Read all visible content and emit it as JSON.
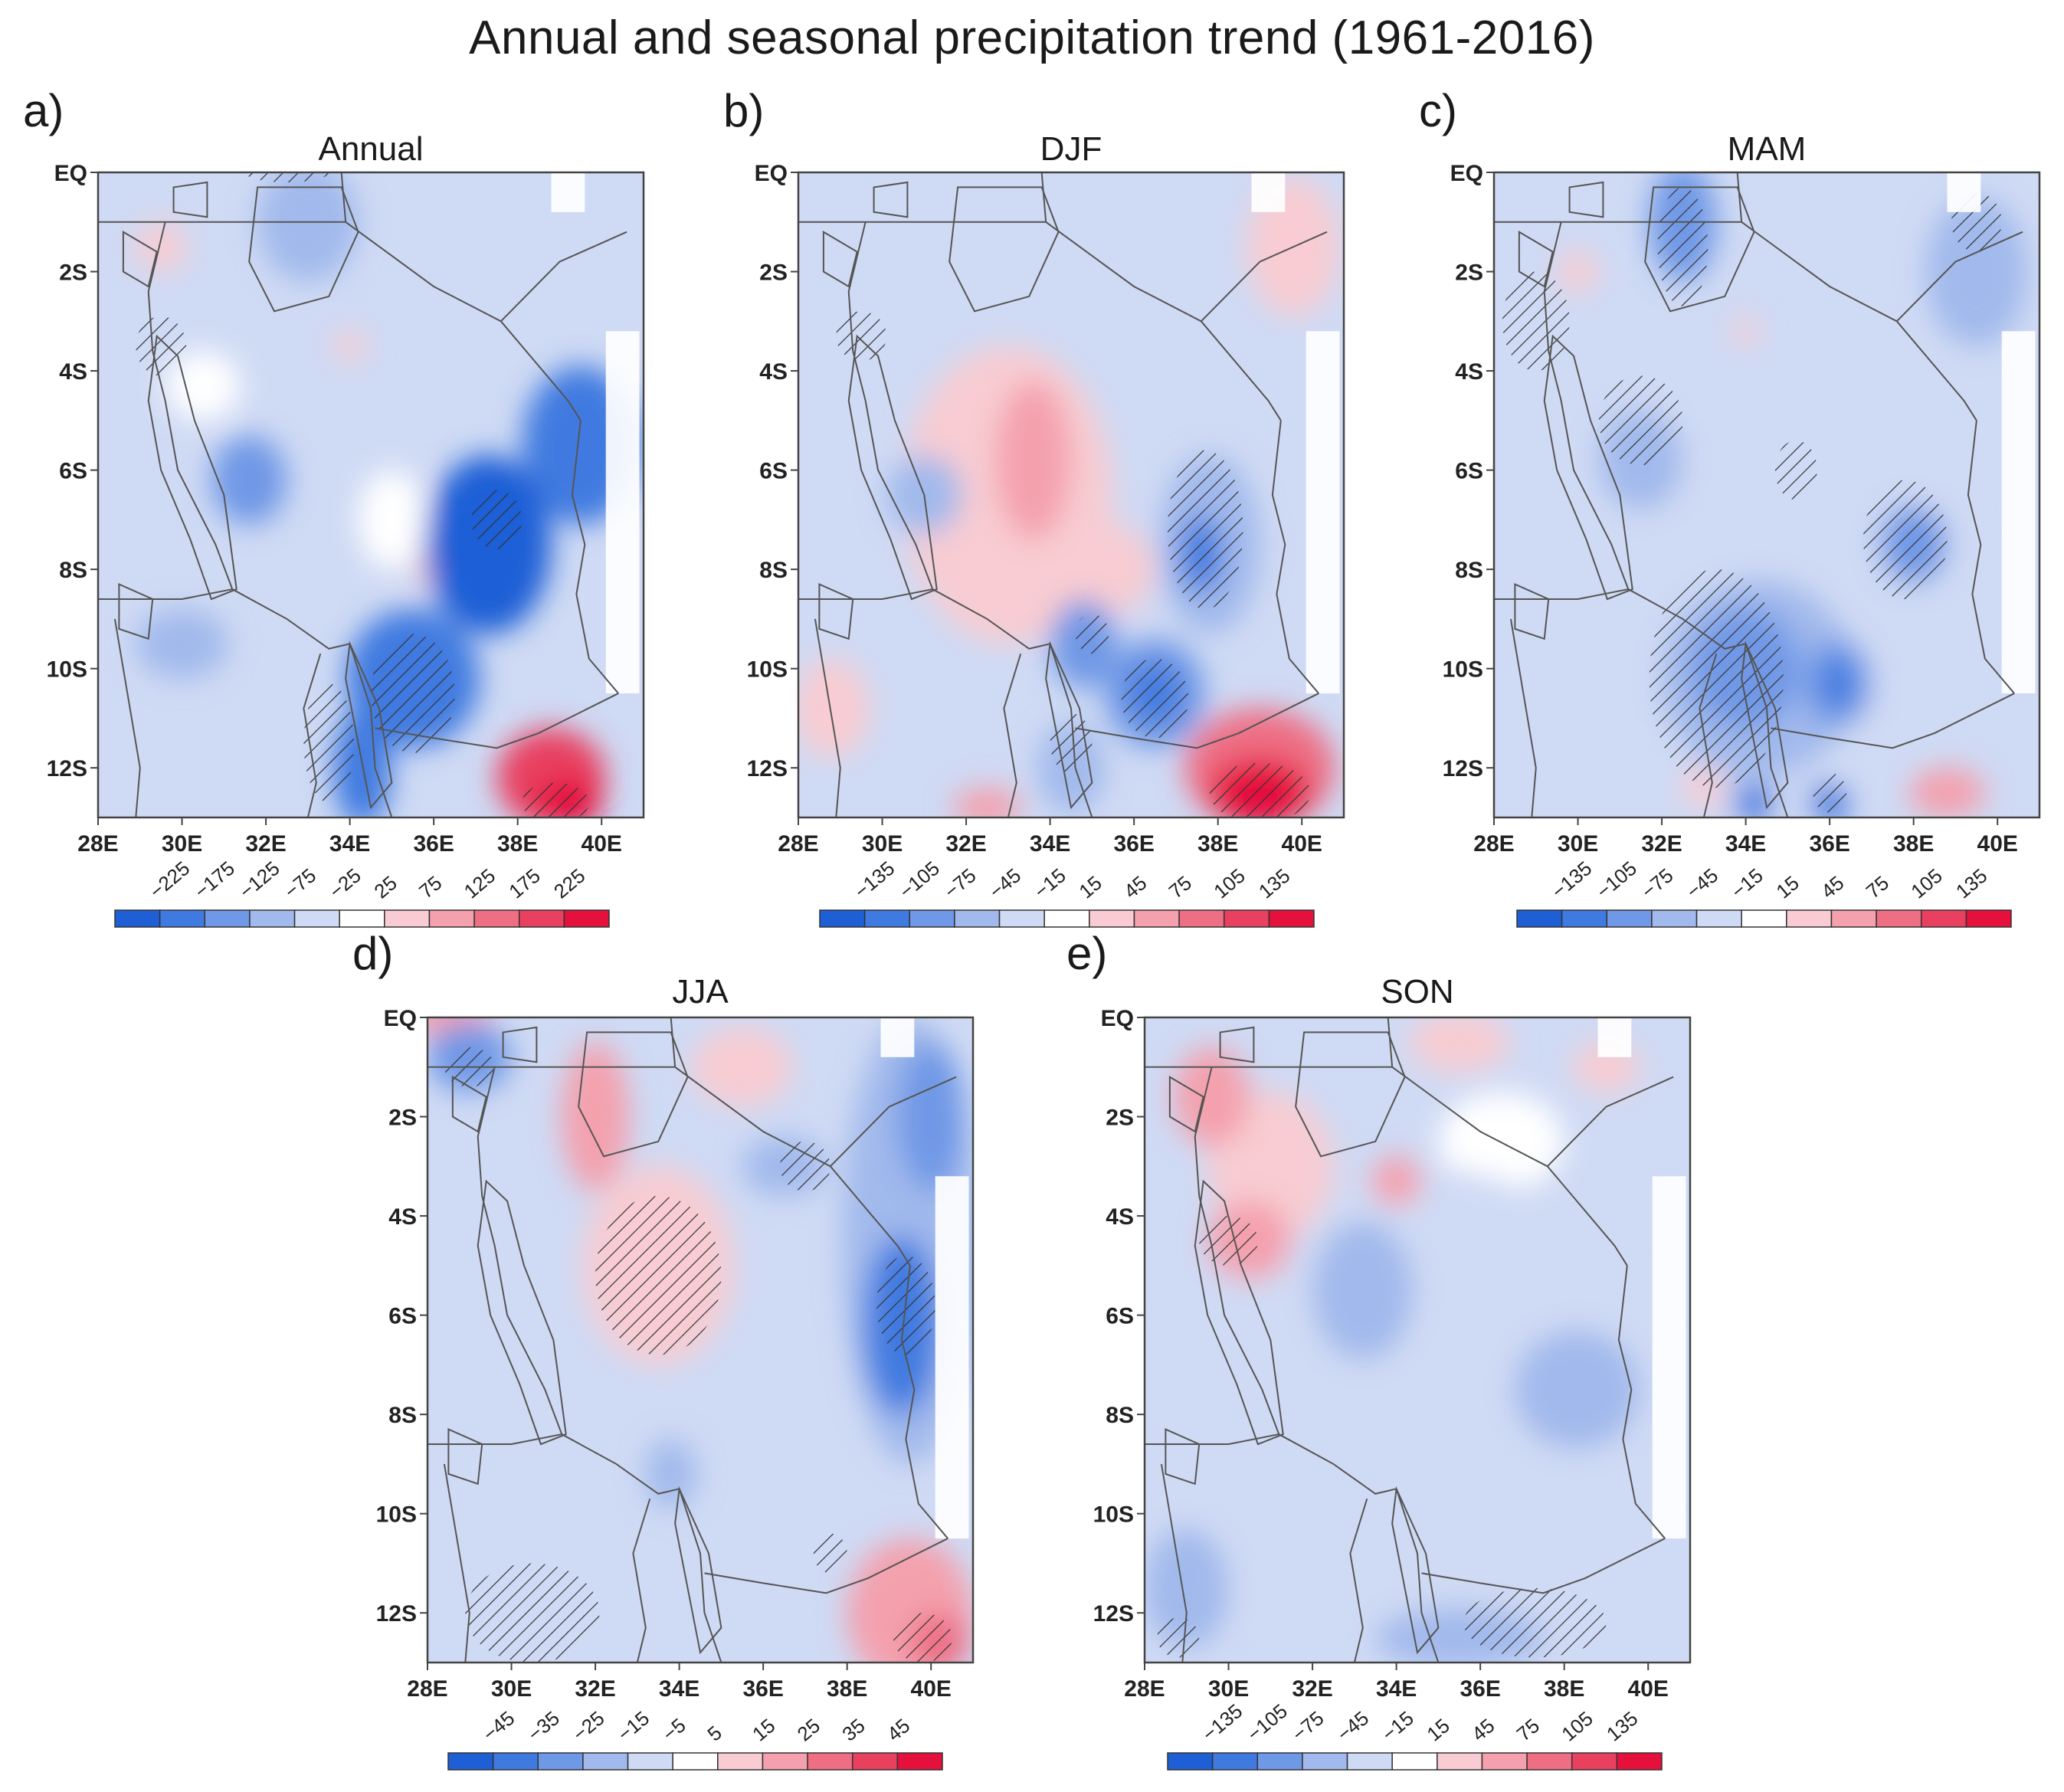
{
  "figure_title": "Annual and seasonal precipitation trend (1961-2016)",
  "colors": {
    "neg": [
      "#1f5fd6",
      "#3f7ae0",
      "#6f98e6",
      "#a1b9ec",
      "#cfdaf4"
    ],
    "neutral": "#ffffff",
    "pos": [
      "#f8ccd2",
      "#f4a0ad",
      "#ee6e84",
      "#e94060",
      "#e5103c"
    ],
    "border": "#555555",
    "hatch": "#333333",
    "missing": "#ffffff"
  },
  "chart_data": [
    {
      "type": "heatmap",
      "panel": "a)",
      "title": "Annual",
      "xticks": [
        "28E",
        "30E",
        "32E",
        "34E",
        "36E",
        "38E",
        "40E"
      ],
      "yticks": [
        "EQ",
        "2S",
        "4S",
        "6S",
        "8S",
        "10S",
        "12S"
      ],
      "lon_range": [
        28,
        41
      ],
      "lat_range": [
        -13,
        0
      ],
      "colorbar_ticks": [
        "-225",
        "-175",
        "-125",
        "-75",
        "-25",
        "25",
        "75",
        "125",
        "175",
        "225"
      ],
      "blobs": [
        {
          "lon": 37.3,
          "lat": -7.5,
          "rx": 1.5,
          "ry": 1.8,
          "level": -5
        },
        {
          "lon": 39.5,
          "lat": -5.5,
          "rx": 1.4,
          "ry": 1.6,
          "level": -4
        },
        {
          "lon": 35.5,
          "lat": -10.2,
          "rx": 1.6,
          "ry": 1.4,
          "level": -4
        },
        {
          "lon": 34.3,
          "lat": -12.0,
          "rx": 0.7,
          "ry": 1.2,
          "level": -4
        },
        {
          "lon": 31.6,
          "lat": -6.2,
          "rx": 0.9,
          "ry": 0.9,
          "level": -3
        },
        {
          "lon": 30.0,
          "lat": -9.5,
          "rx": 1.1,
          "ry": 0.7,
          "level": -2
        },
        {
          "lon": 33.0,
          "lat": -1.0,
          "rx": 1.2,
          "ry": 1.2,
          "level": -2
        },
        {
          "lon": 38.8,
          "lat": -12.2,
          "rx": 1.3,
          "ry": 1.0,
          "level": 4
        },
        {
          "lon": 39.2,
          "lat": -12.7,
          "rx": 0.8,
          "ry": 0.5,
          "level": 5
        },
        {
          "lon": 29.5,
          "lat": -1.5,
          "rx": 0.6,
          "ry": 0.5,
          "level": 1
        },
        {
          "lon": 34.0,
          "lat": -3.5,
          "rx": 0.4,
          "ry": 0.3,
          "level": 1
        },
        {
          "lon": 35.8,
          "lat": -8.0,
          "rx": 0.3,
          "ry": 0.3,
          "level": 1
        },
        {
          "lon": 35.0,
          "lat": -7.0,
          "rx": 0.8,
          "ry": 1.0,
          "level": 0
        },
        {
          "lon": 30.5,
          "lat": -4.3,
          "rx": 0.9,
          "ry": 0.7,
          "level": 0
        }
      ],
      "hatch": [
        {
          "lon": 35.5,
          "lat": -10.5,
          "rx": 1.0,
          "ry": 1.2
        },
        {
          "lon": 33.5,
          "lat": -11.5,
          "rx": 0.6,
          "ry": 1.2
        },
        {
          "lon": 38.9,
          "lat": -12.7,
          "rx": 0.8,
          "ry": 0.4
        },
        {
          "lon": 29.5,
          "lat": -3.5,
          "rx": 0.6,
          "ry": 0.6
        },
        {
          "lon": 37.5,
          "lat": -7.0,
          "rx": 0.6,
          "ry": 0.6
        },
        {
          "lon": 32.5,
          "lat": 0.0,
          "rx": 1.0,
          "ry": 0.2
        }
      ]
    },
    {
      "type": "heatmap",
      "panel": "b)",
      "title": "DJF",
      "xticks": [
        "28E",
        "30E",
        "32E",
        "34E",
        "36E",
        "38E",
        "40E"
      ],
      "yticks": [
        "EQ",
        "2S",
        "4S",
        "6S",
        "8S",
        "10S",
        "12S"
      ],
      "lon_range": [
        28,
        41
      ],
      "lat_range": [
        -13,
        0
      ],
      "colorbar_ticks": [
        "-135",
        "-105",
        "-75",
        "-45",
        "-15",
        "15",
        "45",
        "75",
        "105",
        "135"
      ],
      "blobs": [
        {
          "lon": 33.0,
          "lat": -6.5,
          "rx": 2.5,
          "ry": 3.0,
          "level": 1
        },
        {
          "lon": 33.6,
          "lat": -5.8,
          "rx": 0.9,
          "ry": 1.6,
          "level": 2
        },
        {
          "lon": 35.0,
          "lat": -8.0,
          "rx": 1.5,
          "ry": 1.0,
          "level": 1
        },
        {
          "lon": 39.0,
          "lat": -12.0,
          "rx": 1.8,
          "ry": 1.2,
          "level": 3
        },
        {
          "lon": 39.0,
          "lat": -12.5,
          "rx": 1.2,
          "ry": 0.7,
          "level": 5
        },
        {
          "lon": 39.8,
          "lat": -1.5,
          "rx": 1.1,
          "ry": 1.4,
          "level": 1
        },
        {
          "lon": 28.8,
          "lat": -10.8,
          "rx": 0.9,
          "ry": 1.0,
          "level": 1
        },
        {
          "lon": 32.5,
          "lat": -12.8,
          "rx": 0.8,
          "ry": 0.4,
          "level": 2
        },
        {
          "lon": 37.8,
          "lat": -7.5,
          "rx": 1.2,
          "ry": 1.8,
          "level": -2
        },
        {
          "lon": 37.6,
          "lat": -7.7,
          "rx": 0.5,
          "ry": 0.8,
          "level": -4
        },
        {
          "lon": 36.5,
          "lat": -10.5,
          "rx": 1.2,
          "ry": 1.1,
          "level": -3
        },
        {
          "lon": 36.5,
          "lat": -10.5,
          "rx": 0.6,
          "ry": 0.6,
          "level": -4
        },
        {
          "lon": 34.8,
          "lat": -9.5,
          "rx": 0.8,
          "ry": 0.9,
          "level": -3
        },
        {
          "lon": 31.0,
          "lat": -6.5,
          "rx": 0.9,
          "ry": 0.8,
          "level": -2
        },
        {
          "lon": 34.5,
          "lat": -12.0,
          "rx": 0.8,
          "ry": 0.9,
          "level": -2
        },
        {
          "lon": 29.2,
          "lat": -3.5,
          "rx": 0.9,
          "ry": 0.7,
          "level": -1
        }
      ],
      "hatch": [
        {
          "lon": 37.7,
          "lat": -7.2,
          "rx": 0.9,
          "ry": 1.6
        },
        {
          "lon": 36.5,
          "lat": -10.6,
          "rx": 0.8,
          "ry": 0.8
        },
        {
          "lon": 39.0,
          "lat": -12.5,
          "rx": 1.2,
          "ry": 0.6
        },
        {
          "lon": 35.0,
          "lat": -9.3,
          "rx": 0.4,
          "ry": 0.4
        },
        {
          "lon": 29.5,
          "lat": -3.3,
          "rx": 0.6,
          "ry": 0.5
        },
        {
          "lon": 34.5,
          "lat": -11.5,
          "rx": 0.5,
          "ry": 0.6
        }
      ]
    },
    {
      "type": "heatmap",
      "panel": "c)",
      "title": "MAM",
      "xticks": [
        "28E",
        "30E",
        "32E",
        "34E",
        "36E",
        "38E",
        "40E"
      ],
      "yticks": [
        "EQ",
        "2S",
        "4S",
        "6S",
        "8S",
        "10S",
        "12S"
      ],
      "lon_range": [
        28,
        41
      ],
      "lat_range": [
        -13,
        0
      ],
      "colorbar_ticks": [
        "-135",
        "-105",
        "-75",
        "-45",
        "-15",
        "15",
        "45",
        "75",
        "105",
        "135"
      ],
      "blobs": [
        {
          "lon": 34.5,
          "lat": -8.5,
          "rx": 5.0,
          "ry": 4.5,
          "level": -1
        },
        {
          "lon": 34.3,
          "lat": -10.2,
          "rx": 2.3,
          "ry": 2.0,
          "level": -2
        },
        {
          "lon": 34.0,
          "lat": -10.0,
          "rx": 1.3,
          "ry": 1.2,
          "level": -3
        },
        {
          "lon": 36.2,
          "lat": -10.3,
          "rx": 0.8,
          "ry": 0.9,
          "level": -3
        },
        {
          "lon": 36.2,
          "lat": -10.3,
          "rx": 0.4,
          "ry": 0.5,
          "level": -4
        },
        {
          "lon": 31.5,
          "lat": -5.8,
          "rx": 1.0,
          "ry": 1.0,
          "level": -2
        },
        {
          "lon": 38.0,
          "lat": -7.5,
          "rx": 0.8,
          "ry": 0.8,
          "level": -3
        },
        {
          "lon": 39.5,
          "lat": -2.0,
          "rx": 1.2,
          "ry": 1.5,
          "level": -2
        },
        {
          "lon": 32.5,
          "lat": -1.0,
          "rx": 0.8,
          "ry": 1.2,
          "level": -3
        },
        {
          "lon": 36.0,
          "lat": -12.7,
          "rx": 0.5,
          "ry": 0.4,
          "level": -4
        },
        {
          "lon": 34.2,
          "lat": -12.7,
          "rx": 0.5,
          "ry": 0.4,
          "level": -4
        },
        {
          "lon": 38.8,
          "lat": -12.5,
          "rx": 0.9,
          "ry": 0.5,
          "level": 2
        },
        {
          "lon": 30.0,
          "lat": -2.0,
          "rx": 0.5,
          "ry": 0.4,
          "level": 1
        },
        {
          "lon": 34.0,
          "lat": -3.2,
          "rx": 0.3,
          "ry": 0.3,
          "level": 1
        },
        {
          "lon": 33.0,
          "lat": -12.4,
          "rx": 0.5,
          "ry": 0.4,
          "level": 1
        }
      ],
      "hatch": [
        {
          "lon": 33.3,
          "lat": -10.2,
          "rx": 1.6,
          "ry": 2.2
        },
        {
          "lon": 31.5,
          "lat": -5.0,
          "rx": 1.0,
          "ry": 0.9
        },
        {
          "lon": 37.8,
          "lat": -7.4,
          "rx": 1.0,
          "ry": 1.2
        },
        {
          "lon": 35.2,
          "lat": -6.0,
          "rx": 0.5,
          "ry": 0.6
        },
        {
          "lon": 32.5,
          "lat": -1.5,
          "rx": 0.6,
          "ry": 1.2
        },
        {
          "lon": 29.0,
          "lat": -3.0,
          "rx": 0.8,
          "ry": 1.0
        },
        {
          "lon": 39.5,
          "lat": -1.0,
          "rx": 0.6,
          "ry": 0.6
        },
        {
          "lon": 36.0,
          "lat": -12.5,
          "rx": 0.4,
          "ry": 0.4
        }
      ]
    },
    {
      "type": "heatmap",
      "panel": "d)",
      "title": "JJA",
      "xticks": [
        "28E",
        "30E",
        "32E",
        "34E",
        "36E",
        "38E",
        "40E"
      ],
      "yticks": [
        "EQ",
        "2S",
        "4S",
        "6S",
        "8S",
        "10S",
        "12S"
      ],
      "lon_range": [
        28,
        41
      ],
      "lat_range": [
        -13,
        0
      ],
      "colorbar_ticks": [
        "-45",
        "-35",
        "-25",
        "-15",
        "-5",
        "5",
        "15",
        "25",
        "35",
        "45"
      ],
      "blobs": [
        {
          "lon": 39.5,
          "lat": -4.5,
          "rx": 1.6,
          "ry": 4.5,
          "level": -2
        },
        {
          "lon": 39.3,
          "lat": -6.2,
          "rx": 0.9,
          "ry": 1.8,
          "level": -4
        },
        {
          "lon": 40.0,
          "lat": -2.0,
          "rx": 0.8,
          "ry": 1.5,
          "level": -3
        },
        {
          "lon": 33.8,
          "lat": -9.2,
          "rx": 0.6,
          "ry": 0.7,
          "level": -2
        },
        {
          "lon": 29.0,
          "lat": -0.8,
          "rx": 1.0,
          "ry": 0.7,
          "level": -3
        },
        {
          "lon": 36.5,
          "lat": -3.0,
          "rx": 1.0,
          "ry": 0.6,
          "level": -2
        },
        {
          "lon": 28.5,
          "lat": -5.5,
          "rx": 0.7,
          "ry": 1.2,
          "level": -1
        },
        {
          "lon": 33.5,
          "lat": -5.0,
          "rx": 1.8,
          "ry": 2.0,
          "level": 1
        },
        {
          "lon": 32.0,
          "lat": -2.0,
          "rx": 0.8,
          "ry": 1.5,
          "level": 2
        },
        {
          "lon": 39.5,
          "lat": -12.0,
          "rx": 1.5,
          "ry": 1.5,
          "level": 2
        },
        {
          "lon": 40.2,
          "lat": -12.6,
          "rx": 0.7,
          "ry": 0.6,
          "level": 3
        },
        {
          "lon": 35.5,
          "lat": -1.0,
          "rx": 1.2,
          "ry": 0.8,
          "level": 1
        },
        {
          "lon": 28.5,
          "lat": 0.0,
          "rx": 1.0,
          "ry": 0.4,
          "level": 2
        }
      ],
      "hatch": [
        {
          "lon": 33.5,
          "lat": -5.2,
          "rx": 1.5,
          "ry": 1.6
        },
        {
          "lon": 30.5,
          "lat": -12.0,
          "rx": 1.6,
          "ry": 1.0
        },
        {
          "lon": 39.4,
          "lat": -5.8,
          "rx": 0.7,
          "ry": 1.0
        },
        {
          "lon": 37.0,
          "lat": -3.0,
          "rx": 0.6,
          "ry": 0.5
        },
        {
          "lon": 29.0,
          "lat": -1.0,
          "rx": 0.6,
          "ry": 0.4
        },
        {
          "lon": 39.8,
          "lat": -12.5,
          "rx": 0.7,
          "ry": 0.5
        },
        {
          "lon": 37.6,
          "lat": -10.8,
          "rx": 0.4,
          "ry": 0.4
        }
      ]
    },
    {
      "type": "heatmap",
      "panel": "e)",
      "title": "SON",
      "xticks": [
        "28E",
        "30E",
        "32E",
        "34E",
        "36E",
        "38E",
        "40E"
      ],
      "yticks": [
        "EQ",
        "2S",
        "4S",
        "6S",
        "8S",
        "10S",
        "12S"
      ],
      "lon_range": [
        28,
        41
      ],
      "lat_range": [
        -13,
        0
      ],
      "colorbar_ticks": [
        "-135",
        "-105",
        "-75",
        "-45",
        "-15",
        "15",
        "45",
        "75",
        "105",
        "135"
      ],
      "blobs": [
        {
          "lon": 34.5,
          "lat": -8.0,
          "rx": 6.0,
          "ry": 5.0,
          "level": -1
        },
        {
          "lon": 38.3,
          "lat": -7.5,
          "rx": 1.5,
          "ry": 1.2,
          "level": -2
        },
        {
          "lon": 33.2,
          "lat": -5.5,
          "rx": 1.2,
          "ry": 1.4,
          "level": -2
        },
        {
          "lon": 35.5,
          "lat": -12.5,
          "rx": 2.0,
          "ry": 0.6,
          "level": -2
        },
        {
          "lon": 29.0,
          "lat": -11.5,
          "rx": 1.0,
          "ry": 1.2,
          "level": -2
        },
        {
          "lon": 31.0,
          "lat": -3.0,
          "rx": 1.5,
          "ry": 1.5,
          "level": 1
        },
        {
          "lon": 30.5,
          "lat": -4.5,
          "rx": 1.0,
          "ry": 0.8,
          "level": 2
        },
        {
          "lon": 29.6,
          "lat": -1.6,
          "rx": 0.9,
          "ry": 1.0,
          "level": 2
        },
        {
          "lon": 34.0,
          "lat": -3.3,
          "rx": 0.6,
          "ry": 0.5,
          "level": 2
        },
        {
          "lon": 35.5,
          "lat": -0.5,
          "rx": 1.2,
          "ry": 0.6,
          "level": 1
        },
        {
          "lon": 39.0,
          "lat": -1.0,
          "rx": 0.8,
          "ry": 0.5,
          "level": 1
        },
        {
          "lon": 37.0,
          "lat": -10.0,
          "rx": 1.5,
          "ry": 1.6,
          "level": 0
        },
        {
          "lon": 32.2,
          "lat": -9.8,
          "rx": 0.8,
          "ry": 1.1,
          "level": 0
        },
        {
          "lon": 36.5,
          "lat": -2.5,
          "rx": 1.5,
          "ry": 1.0,
          "level": 0
        }
      ],
      "hatch": [
        {
          "lon": 37.3,
          "lat": -12.2,
          "rx": 1.7,
          "ry": 0.7
        },
        {
          "lon": 30.0,
          "lat": -4.5,
          "rx": 0.7,
          "ry": 0.5
        },
        {
          "lon": 28.8,
          "lat": -12.5,
          "rx": 0.5,
          "ry": 0.4
        }
      ]
    }
  ]
}
